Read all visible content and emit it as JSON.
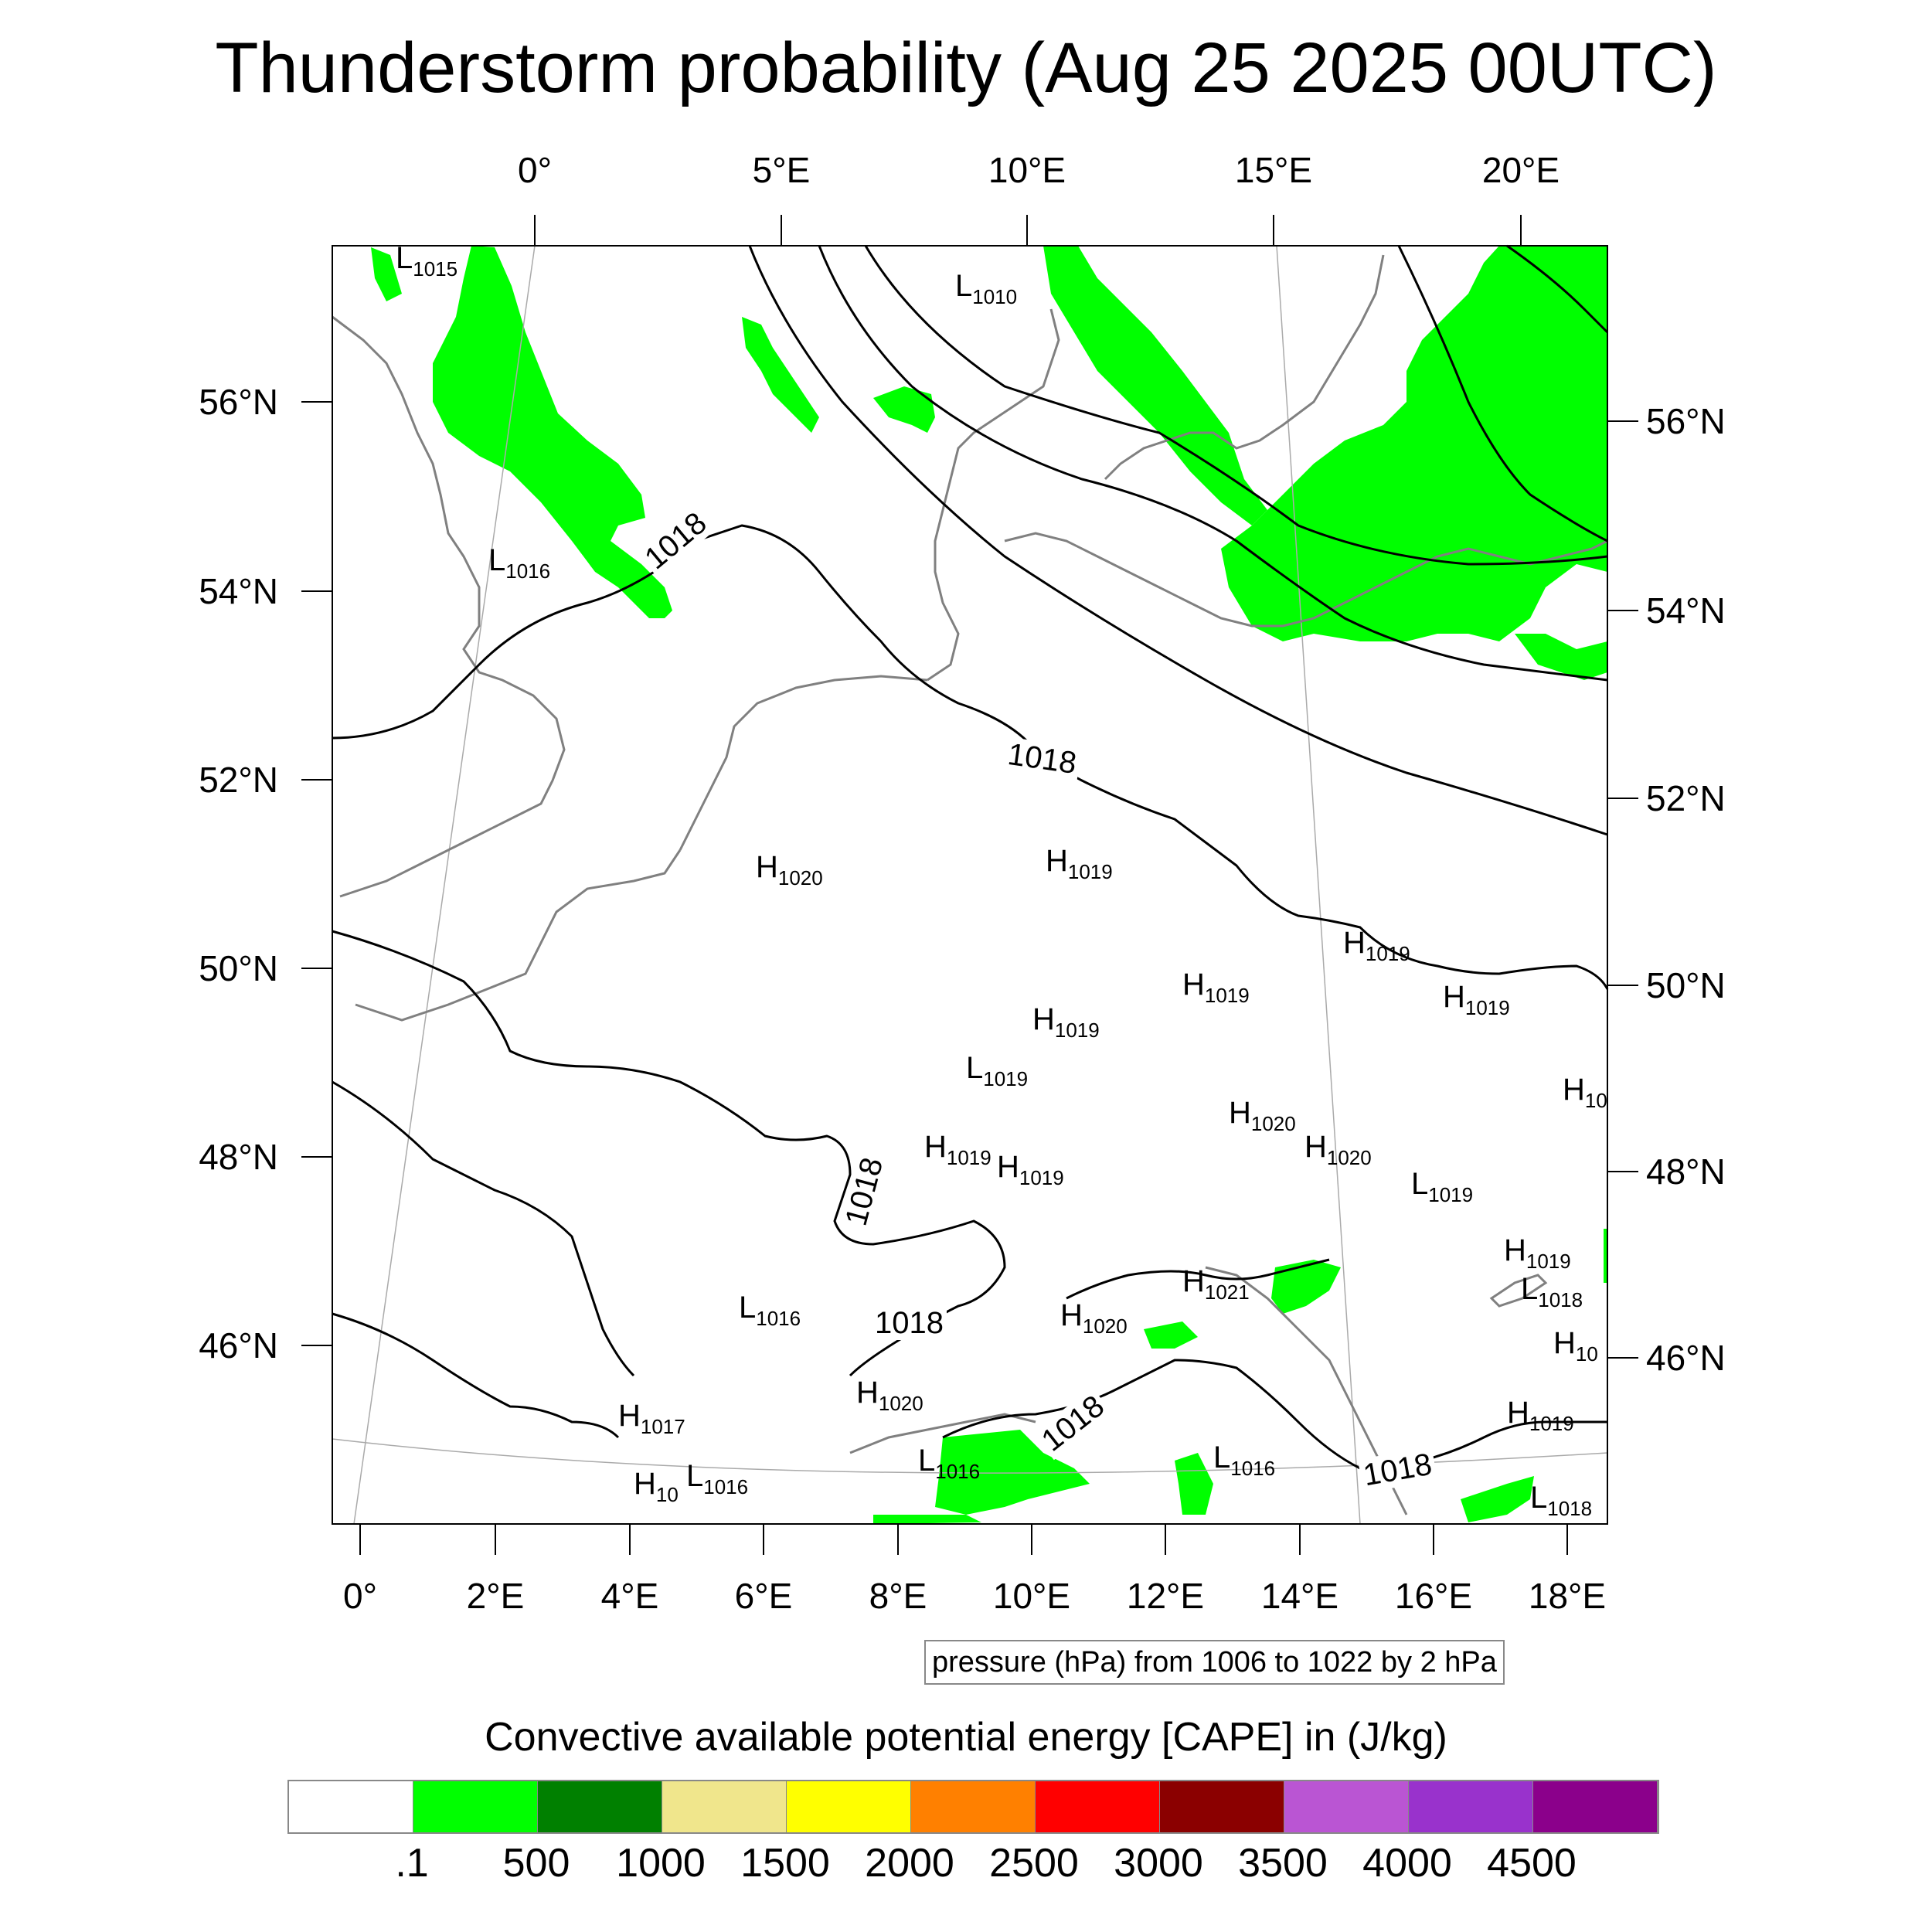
{
  "title": "Thunderstorm probability (Aug 25 2025 00UTC)",
  "axes": {
    "top_ticks": [
      "0°",
      "5°E",
      "10°E",
      "15°E",
      "20°E"
    ],
    "bottom_ticks": [
      "0°",
      "2°E",
      "4°E",
      "6°E",
      "8°E",
      "10°E",
      "12°E",
      "14°E",
      "16°E",
      "18°E"
    ],
    "left_ticks": [
      "56°N",
      "54°N",
      "52°N",
      "50°N",
      "48°N",
      "46°N"
    ],
    "right_ticks": [
      "56°N",
      "54°N",
      "52°N",
      "50°N",
      "48°N",
      "46°N"
    ]
  },
  "pressure_centers": [
    {
      "type": "L",
      "value": "1015"
    },
    {
      "type": "L",
      "value": "1010"
    },
    {
      "type": "L",
      "value": "1016"
    },
    {
      "type": "H",
      "value": "1020"
    },
    {
      "type": "H",
      "value": "1019"
    },
    {
      "type": "H",
      "value": "1019"
    },
    {
      "type": "H",
      "value": "1019"
    },
    {
      "type": "H",
      "value": "1019"
    },
    {
      "type": "L",
      "value": "1019"
    },
    {
      "type": "H",
      "value": "1019"
    },
    {
      "type": "H",
      "value": "10"
    },
    {
      "type": "H",
      "value": "1020"
    },
    {
      "type": "H",
      "value": "1020"
    },
    {
      "type": "H",
      "value": "1019"
    },
    {
      "type": "H",
      "value": "1019"
    },
    {
      "type": "L",
      "value": "1019"
    },
    {
      "type": "H",
      "value": "1019"
    },
    {
      "type": "L",
      "value": "1018"
    },
    {
      "type": "H",
      "value": "1021"
    },
    {
      "type": "L",
      "value": "1016"
    },
    {
      "type": "H",
      "value": "1020"
    },
    {
      "type": "H",
      "value": "10"
    },
    {
      "type": "H",
      "value": "1017"
    },
    {
      "type": "H",
      "value": "1020"
    },
    {
      "type": "H",
      "value": "10"
    },
    {
      "type": "L",
      "value": "1016"
    },
    {
      "type": "L",
      "value": "1016"
    },
    {
      "type": "L",
      "value": "1016"
    },
    {
      "type": "H",
      "value": "1019"
    },
    {
      "type": "L",
      "value": "1018"
    }
  ],
  "contour_labels": [
    "1018",
    "1018",
    "1018",
    "1018",
    "1018",
    "1018"
  ],
  "contour_note": "pressure (hPa) from 1006 to 1022 by 2 hPa",
  "legend": {
    "title": "Convective available potential energy [CAPE] in (J/kg)",
    "colors": [
      "#ffffff",
      "#00ff00",
      "#008000",
      "#f0e68c",
      "#ffff00",
      "#ff8000",
      "#ff0000",
      "#8b0000",
      "#ba55d3",
      "#9932cc",
      "#8b008b"
    ],
    "labels": [
      ".1",
      "500",
      "1000",
      "1500",
      "2000",
      "2500",
      "3000",
      "3500",
      "4000",
      "4500"
    ]
  },
  "colors": {
    "cape_fill": "#00ff00",
    "coastline": "#808080",
    "isobar": "#000000"
  }
}
